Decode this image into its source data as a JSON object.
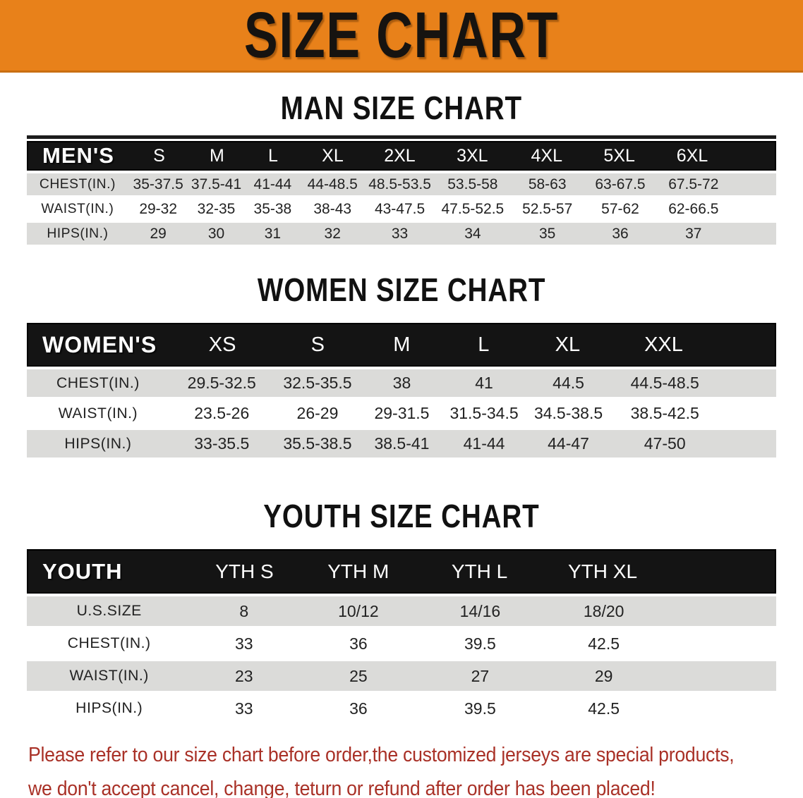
{
  "banner": {
    "title": "SIZE CHART"
  },
  "colors": {
    "banner_orange": "#E8811A",
    "header_bar_black": "#141414",
    "row_gray": "#DBDBD9",
    "footer_red": "#A93127"
  },
  "man_section": {
    "heading": "MAN SIZE CHART",
    "table": {
      "header_label": "MEN'S",
      "columns": [
        "S",
        "M",
        "L",
        "XL",
        "2XL",
        "3XL",
        "4XL",
        "5XL",
        "6XL"
      ],
      "rows": [
        {
          "label": "CHEST(IN.)",
          "values": [
            "35-37.5",
            "37.5-41",
            "41-44",
            "44-48.5",
            "48.5-53.5",
            "53.5-58",
            "58-63",
            "63-67.5",
            "67.5-72"
          ]
        },
        {
          "label": "WAIST(IN.)",
          "values": [
            "29-32",
            "32-35",
            "35-38",
            "38-43",
            "43-47.5",
            "47.5-52.5",
            "52.5-57",
            "57-62",
            "62-66.5"
          ]
        },
        {
          "label": "HIPS(IN.)",
          "values": [
            "29",
            "30",
            "31",
            "32",
            "33",
            "34",
            "35",
            "36",
            "37"
          ]
        }
      ]
    }
  },
  "women_section": {
    "heading": "WOMEN SIZE CHART",
    "table": {
      "header_label": "WOMEN'S",
      "columns": [
        "XS",
        "S",
        "M",
        "L",
        "XL",
        "XXL"
      ],
      "rows": [
        {
          "label": "CHEST(IN.)",
          "values": [
            "29.5-32.5",
            "32.5-35.5",
            "38",
            "41",
            "44.5",
            "44.5-48.5"
          ]
        },
        {
          "label": "WAIST(IN.)",
          "values": [
            "23.5-26",
            "26-29",
            "29-31.5",
            "31.5-34.5",
            "34.5-38.5",
            "38.5-42.5"
          ]
        },
        {
          "label": "HIPS(IN.)",
          "values": [
            "33-35.5",
            "35.5-38.5",
            "38.5-41",
            "41-44",
            "44-47",
            "47-50"
          ]
        }
      ]
    }
  },
  "youth_section": {
    "heading": "YOUTH SIZE CHART",
    "table": {
      "header_label": "YOUTH",
      "columns": [
        "YTH S",
        "YTH M",
        "YTH L",
        "YTH XL"
      ],
      "rows": [
        {
          "label": "U.S.SIZE",
          "values": [
            "8",
            "10/12",
            "14/16",
            "18/20"
          ]
        },
        {
          "label": "CHEST(IN.)",
          "values": [
            "33",
            "36",
            "39.5",
            "42.5"
          ]
        },
        {
          "label": "WAIST(IN.)",
          "values": [
            "23",
            "25",
            "27",
            "29"
          ]
        },
        {
          "label": "HIPS(IN.)",
          "values": [
            "33",
            "36",
            "39.5",
            "42.5"
          ]
        }
      ]
    }
  },
  "footer": {
    "line1": "Please refer to our size chart before order,the customized jerseys are special products,",
    "line2": "we don't accept cancel, change, teturn or refund after order has been placed!"
  }
}
